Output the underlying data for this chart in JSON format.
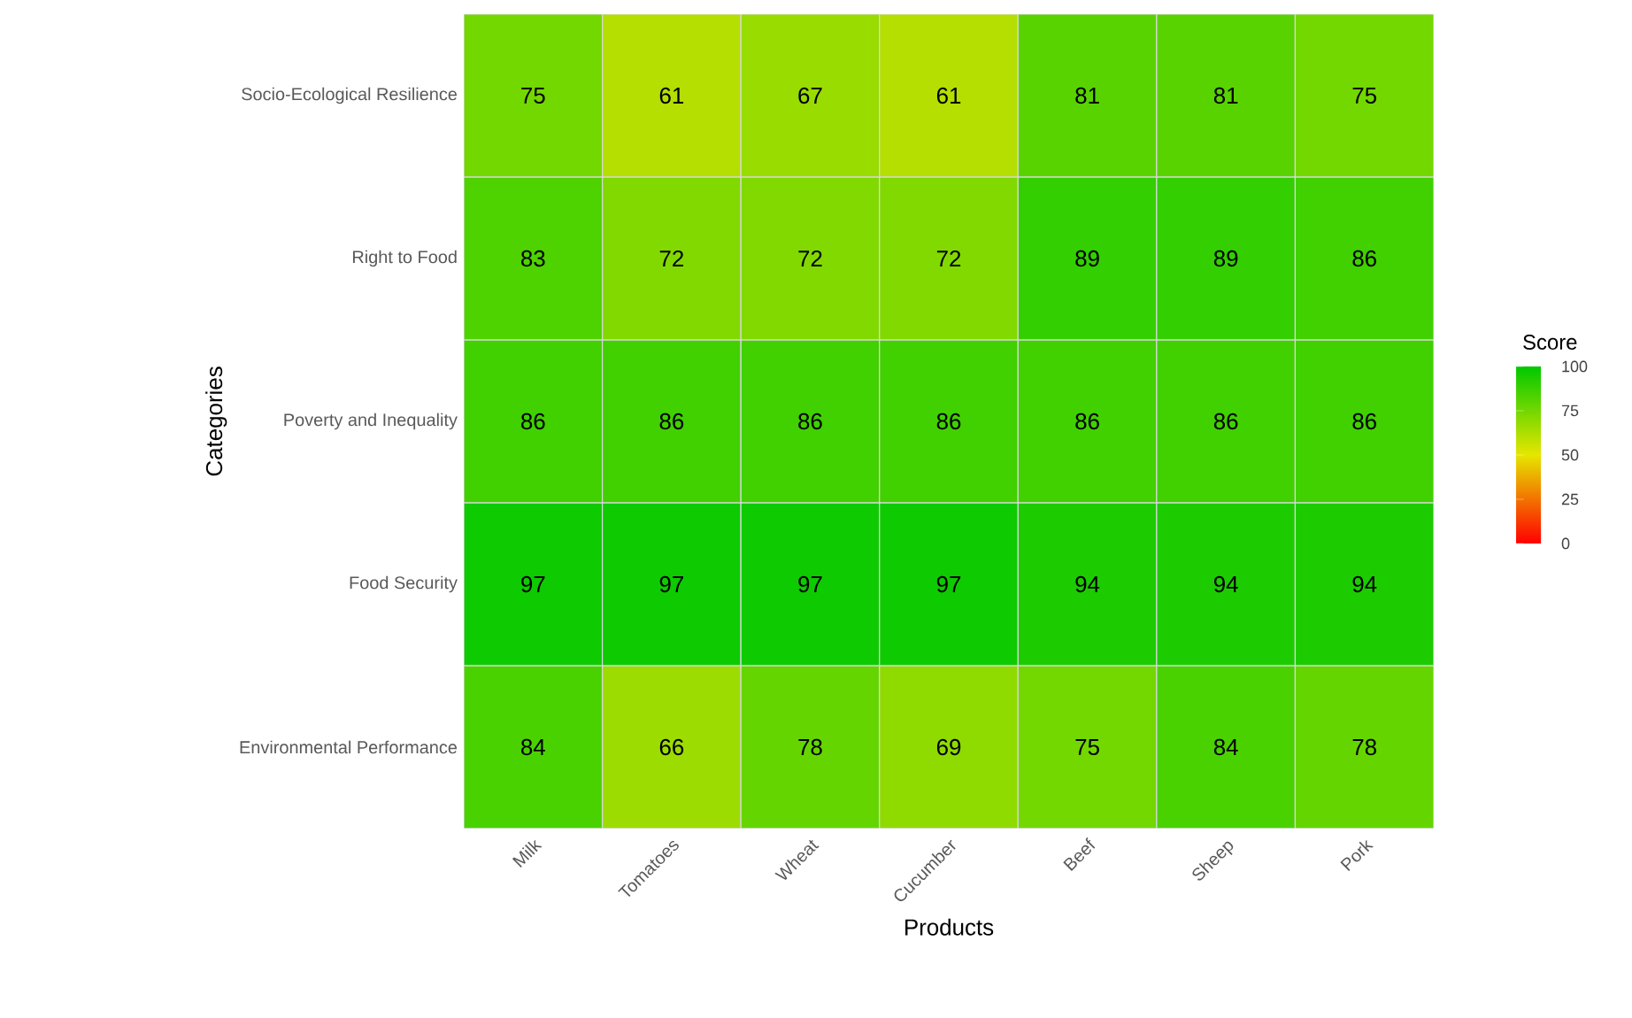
{
  "chart_data": {
    "type": "heatmap",
    "xlabel": "Products",
    "ylabel": "Categories",
    "legend_title": "Score",
    "categories": [
      "Milk",
      "Tomatoes",
      "Wheat",
      "Cucumber",
      "Beef",
      "Sheep",
      "Pork"
    ],
    "y_categories": [
      "Socio-Ecological Resilience",
      "Right to Food",
      "Poverty and Inequality",
      "Food Security",
      "Environmental Performance"
    ],
    "cells": [
      [
        75,
        61,
        67,
        61,
        81,
        81,
        75
      ],
      [
        83,
        72,
        72,
        72,
        89,
        89,
        86
      ],
      [
        86,
        86,
        86,
        86,
        86,
        86,
        86
      ],
      [
        97,
        97,
        97,
        97,
        94,
        94,
        94
      ],
      [
        84,
        66,
        78,
        69,
        75,
        84,
        78
      ]
    ],
    "clim": [
      0,
      100
    ],
    "cticks": [
      0,
      25,
      50,
      75,
      100
    ],
    "data_labels": true
  }
}
